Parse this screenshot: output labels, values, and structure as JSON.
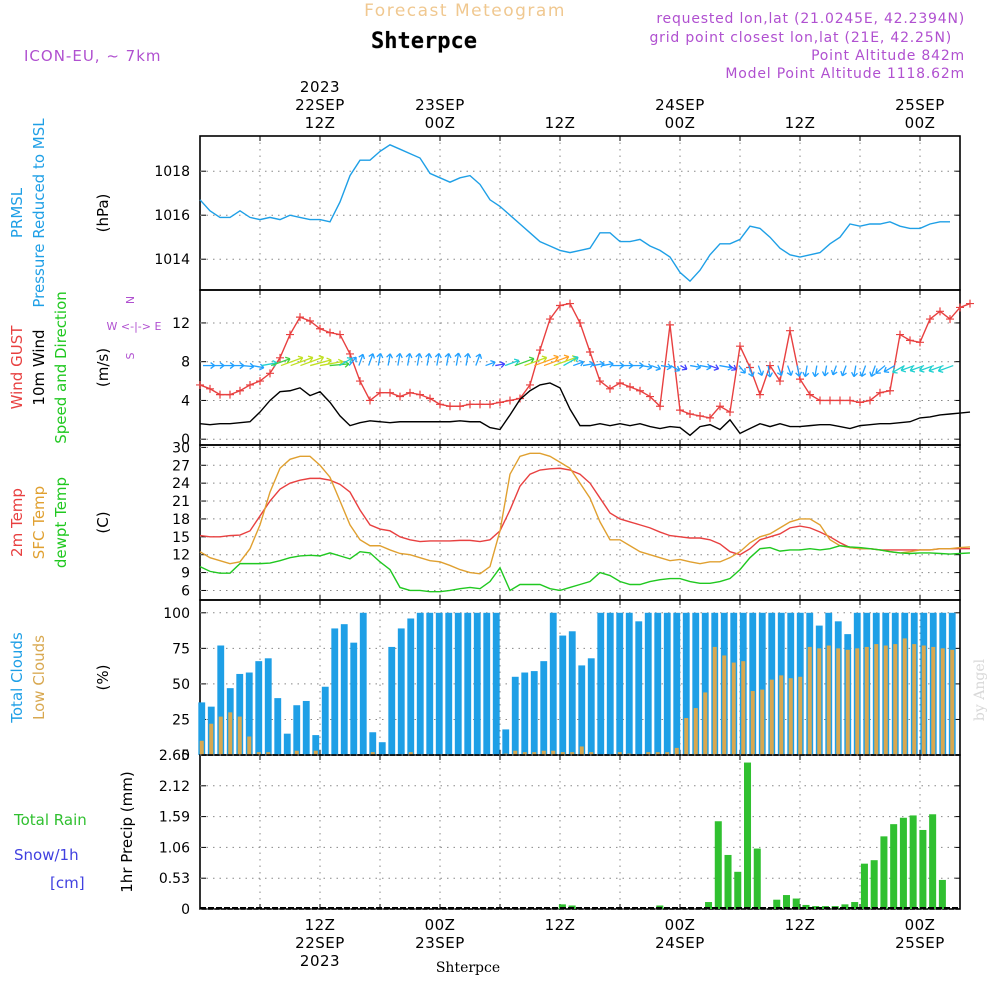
{
  "header": {
    "title_faded": "Forecast Meteogram",
    "location": "Shterpce",
    "model": "ICON-EU, ~ 7km",
    "requested": "requested lon,lat (21.0245E, 42.2394N)",
    "grid_point": "grid point closest lon,lat (21E, 42.25N)",
    "point_altitude": "Point Altitude 842m",
    "model_altitude": "Model Point Altitude 1118.62m",
    "watermark": "by Angel",
    "footer_location": "Shterpce"
  },
  "colors": {
    "pressure": "#1e9fe6",
    "gust": "#e84040",
    "wind": "#000000",
    "temp": "#e84040",
    "sfc": "#e0a030",
    "dewpt": "#20c820",
    "total_cloud": "#1e9fe6",
    "low_cloud": "#d8a850",
    "rain": "#30c030",
    "snow": "#4040e0",
    "purple": "#b050d0",
    "faded": "#f0c890",
    "grid": "#888888",
    "axis": "#000000"
  },
  "time_axis": {
    "top_labels": [
      {
        "t": 12,
        "lines": [
          "2023",
          "22SEP",
          "12Z"
        ]
      },
      {
        "t": 24,
        "lines": [
          "23SEP",
          "00Z"
        ]
      },
      {
        "t": 36,
        "lines": [
          "12Z"
        ]
      },
      {
        "t": 48,
        "lines": [
          "24SEP",
          "00Z"
        ]
      },
      {
        "t": 60,
        "lines": [
          "12Z"
        ]
      },
      {
        "t": 72,
        "lines": [
          "25SEP",
          "00Z"
        ]
      }
    ],
    "bottom_labels": [
      {
        "t": 12,
        "lines": [
          "12Z",
          "22SEP",
          "2023"
        ]
      },
      {
        "t": 24,
        "lines": [
          "00Z",
          "23SEP"
        ]
      },
      {
        "t": 36,
        "lines": [
          "12Z"
        ]
      },
      {
        "t": 48,
        "lines": [
          "00Z",
          "24SEP"
        ]
      },
      {
        "t": 60,
        "lines": [
          "12Z"
        ]
      },
      {
        "t": 72,
        "lines": [
          "00Z",
          "25SEP"
        ]
      }
    ],
    "t_start": 0,
    "t_end": 76
  },
  "chart_data": [
    {
      "type": "line",
      "title": "Pressure Reduced to MSL",
      "ylabel_lines": [
        "PRMSL",
        "Pressure Reduced to MSL"
      ],
      "unit": "(hPa)",
      "yticks": [
        1014,
        1016,
        1018
      ],
      "ylim": [
        1012.6,
        1019.6
      ],
      "series": [
        {
          "name": "PRMSL",
          "color": "#1e9fe6",
          "values": [
            1016.7,
            1016.2,
            1015.9,
            1015.9,
            1016.2,
            1015.9,
            1015.8,
            1015.9,
            1015.8,
            1016.0,
            1015.9,
            1015.8,
            1015.8,
            1015.7,
            1016.6,
            1017.8,
            1018.5,
            1018.5,
            1018.9,
            1019.2,
            1019.0,
            1018.8,
            1018.6,
            1017.9,
            1017.7,
            1017.5,
            1017.7,
            1017.8,
            1017.4,
            1016.7,
            1016.4,
            1016.0,
            1015.6,
            1015.2,
            1014.8,
            1014.6,
            1014.4,
            1014.3,
            1014.4,
            1014.5,
            1015.2,
            1015.2,
            1014.8,
            1014.8,
            1014.9,
            1014.6,
            1014.4,
            1014.1,
            1013.4,
            1013.0,
            1013.5,
            1014.2,
            1014.7,
            1014.7,
            1014.9,
            1015.5,
            1015.4,
            1015.0,
            1014.5,
            1014.2,
            1014.1,
            1014.2,
            1014.3,
            1014.7,
            1015.0,
            1015.6,
            1015.5,
            1015.6,
            1015.6,
            1015.7,
            1015.5,
            1015.4,
            1015.4,
            1015.6,
            1015.7,
            1015.7
          ]
        }
      ]
    },
    {
      "type": "line",
      "title": "Wind GUST / 10m Wind Speed and Direction",
      "ylabel_lines": [
        "Wind GUST",
        "10m Wind",
        "Speed and Direction"
      ],
      "unit": "(m/s)",
      "compass": "W <-|-> E",
      "compass_ns": [
        "N",
        "S"
      ],
      "yticks": [
        0,
        4,
        8,
        12
      ],
      "ylim": [
        -0.6,
        15.4
      ],
      "series": [
        {
          "name": "Wind GUST",
          "color": "#e84040",
          "marker": "+",
          "values": [
            5.6,
            5.2,
            4.6,
            4.6,
            5.0,
            5.6,
            6.0,
            6.8,
            8.4,
            10.8,
            12.6,
            12.2,
            11.4,
            11.0,
            10.8,
            8.8,
            6.0,
            4.0,
            4.8,
            4.8,
            4.4,
            4.8,
            4.6,
            4.2,
            3.6,
            3.4,
            3.4,
            3.6,
            3.6,
            3.6,
            3.8,
            4.0,
            4.2,
            5.6,
            9.2,
            12.4,
            13.8,
            14.0,
            12.0,
            9.0,
            6.0,
            5.2,
            5.8,
            5.4,
            5.0,
            4.4,
            3.4,
            11.8,
            3.0,
            2.6,
            2.4,
            2.2,
            3.4,
            2.8,
            9.6,
            7.4,
            4.6,
            7.6,
            6.0,
            11.2,
            6.2,
            4.6,
            4.0,
            4.0,
            4.0,
            4.0,
            3.8,
            4.0,
            4.8,
            5.0,
            10.8,
            10.2,
            10.0,
            12.4,
            13.2,
            12.4,
            13.6,
            14.0
          ]
        },
        {
          "name": "10m Wind",
          "color": "#000000",
          "values": [
            1.6,
            1.5,
            1.6,
            1.6,
            1.7,
            1.8,
            2.8,
            4.0,
            4.9,
            5.0,
            5.3,
            4.5,
            4.9,
            3.8,
            2.4,
            1.4,
            1.7,
            1.9,
            1.8,
            1.7,
            1.8,
            1.8,
            1.8,
            1.8,
            1.8,
            1.8,
            1.9,
            1.8,
            1.8,
            1.2,
            1.0,
            2.5,
            4.1,
            5.0,
            5.6,
            5.8,
            5.3,
            3.1,
            1.4,
            1.4,
            1.6,
            1.4,
            1.6,
            1.4,
            1.6,
            1.3,
            1.1,
            1.3,
            1.2,
            0.4,
            1.3,
            1.5,
            1.0,
            2.0,
            0.6,
            1.1,
            1.6,
            1.3,
            1.6,
            1.3,
            1.3,
            1.4,
            1.5,
            1.5,
            1.3,
            1.1,
            1.4,
            1.5,
            1.6,
            1.6,
            1.7,
            1.8,
            2.2,
            2.3,
            2.5,
            2.6,
            2.7,
            2.8
          ]
        }
      ],
      "arrows_y_level": 7.6,
      "arrows": {
        "start_t": 0.3,
        "step": 0.5,
        "speeds": [
          1.6,
          1.5,
          1.6,
          1.6,
          1.7,
          1.8,
          2.8,
          4.0,
          4.9,
          5.0,
          5.3,
          4.5,
          4.9,
          3.8,
          2.4,
          1.4,
          1.7,
          1.9,
          1.8,
          1.7,
          1.8,
          1.8,
          1.8,
          1.8,
          1.8,
          1.8,
          1.9,
          1.8,
          1.8,
          1.2,
          1.0,
          2.5,
          4.1,
          5.0,
          5.6,
          5.8,
          5.3,
          3.1,
          1.4,
          1.4,
          1.6,
          1.4,
          1.6,
          1.4,
          1.6,
          1.3,
          1.1,
          1.3,
          1.2,
          0.4,
          1.3,
          1.5,
          1.0,
          2.0,
          0.6,
          1.1,
          1.6,
          1.3,
          1.6,
          1.3,
          1.3,
          1.4,
          1.5,
          1.5,
          1.3,
          1.1,
          1.4,
          1.5,
          1.6,
          1.6,
          1.7,
          1.8,
          2.2,
          2.3,
          2.5,
          2.6,
          2.7,
          2.8
        ],
        "dirs": [
          90,
          90,
          90,
          90,
          95,
          100,
          80,
          70,
          70,
          70,
          70,
          75,
          80,
          85,
          60,
          40,
          20,
          20,
          10,
          10,
          10,
          10,
          10,
          10,
          10,
          10,
          10,
          10,
          20,
          70,
          80,
          70,
          70,
          70,
          70,
          70,
          70,
          60,
          70,
          80,
          80,
          80,
          90,
          90,
          90,
          100,
          110,
          100,
          120,
          120,
          100,
          100,
          110,
          100,
          120,
          140,
          160,
          160,
          170,
          160,
          160,
          170,
          190,
          190,
          190,
          200,
          200,
          190,
          200,
          200,
          230,
          240,
          240,
          250,
          250,
          250,
          250,
          250
        ]
      }
    },
    {
      "type": "line",
      "title": "2m Temp / SFC Temp / dewpt Temp",
      "ylabel_lines": [
        "2m Temp",
        "SFC Temp",
        "dewpt Temp"
      ],
      "unit": "(C)",
      "yticks": [
        6,
        9,
        12,
        15,
        18,
        21,
        24,
        27,
        30
      ],
      "ylim": [
        4.4,
        30.4
      ],
      "series": [
        {
          "name": "2m Temp",
          "color": "#e84040",
          "values": [
            15.2,
            15.0,
            15.0,
            15.2,
            15.3,
            16.0,
            18.5,
            21.0,
            23.0,
            24.0,
            24.5,
            24.8,
            24.8,
            24.5,
            23.8,
            22.5,
            19.5,
            17.0,
            16.3,
            16.0,
            15.0,
            14.5,
            14.2,
            14.3,
            14.3,
            14.3,
            14.4,
            14.4,
            14.2,
            14.5,
            16.0,
            19.5,
            23.5,
            25.5,
            26.2,
            26.4,
            26.5,
            26.2,
            25.5,
            24.0,
            21.5,
            19.0,
            18.0,
            17.5,
            17.0,
            16.5,
            15.8,
            15.2,
            15.0,
            14.8,
            14.8,
            14.5,
            13.8,
            12.5,
            12.0,
            13.0,
            14.5,
            15.0,
            15.5,
            16.5,
            16.8,
            16.5,
            15.8,
            15.0,
            14.0,
            13.2,
            13.0,
            13.0,
            12.8,
            12.8,
            12.8,
            12.8,
            12.8,
            12.8,
            13.0,
            13.0,
            13.0,
            13.0
          ]
        },
        {
          "name": "SFC Temp",
          "color": "#e0a030",
          "values": [
            12.5,
            11.5,
            11.0,
            10.5,
            10.8,
            13.0,
            17.0,
            22.5,
            26.5,
            28.0,
            28.5,
            28.5,
            27.0,
            25.0,
            21.0,
            17.0,
            14.5,
            13.5,
            13.5,
            12.8,
            12.2,
            12.0,
            11.5,
            11.0,
            10.8,
            10.2,
            9.5,
            9.0,
            8.8,
            10.0,
            16.0,
            25.5,
            28.5,
            29.0,
            29.0,
            28.5,
            27.5,
            26.5,
            24.0,
            21.5,
            17.5,
            14.5,
            14.5,
            13.5,
            12.5,
            12.0,
            11.5,
            11.0,
            11.2,
            10.8,
            10.5,
            10.8,
            10.8,
            11.5,
            12.5,
            14.0,
            15.0,
            15.5,
            16.5,
            17.5,
            18.0,
            18.0,
            17.0,
            14.5,
            13.5,
            13.2,
            13.0,
            13.0,
            12.8,
            12.5,
            12.3,
            12.5,
            12.8,
            12.8,
            13.0,
            13.0,
            13.2,
            13.3
          ]
        },
        {
          "name": "dewpt Temp",
          "color": "#20c820",
          "values": [
            10.0,
            9.2,
            8.9,
            8.9,
            10.5,
            10.5,
            10.5,
            10.6,
            11.0,
            11.5,
            11.8,
            11.9,
            11.8,
            12.3,
            11.8,
            11.3,
            12.5,
            12.3,
            10.8,
            9.5,
            6.5,
            6.0,
            6.0,
            5.8,
            5.8,
            6.0,
            6.3,
            6.5,
            6.3,
            7.5,
            9.8,
            6.0,
            7.0,
            7.0,
            7.0,
            6.3,
            6.0,
            6.5,
            7.0,
            7.5,
            9.0,
            8.5,
            7.5,
            7.0,
            7.0,
            7.5,
            7.8,
            8.0,
            8.0,
            7.5,
            7.2,
            7.2,
            7.5,
            8.0,
            9.5,
            11.5,
            13.0,
            13.2,
            12.6,
            12.8,
            12.8,
            13.0,
            12.8,
            13.0,
            13.5,
            13.3,
            13.2,
            13.0,
            12.8,
            12.5,
            12.3,
            12.2,
            12.3,
            12.3,
            12.2,
            12.1,
            12.2,
            12.3
          ]
        }
      ]
    },
    {
      "type": "bar",
      "title": "Total Clouds / Low Clouds",
      "ylabel_lines": [
        "Total Clouds",
        "Low Clouds"
      ],
      "unit": "(%)",
      "yticks": [
        0,
        25,
        50,
        75,
        100
      ],
      "ylim": [
        0,
        109
      ],
      "series": [
        {
          "name": "Total Clouds",
          "color": "#1e9fe6",
          "values": [
            37,
            34,
            77,
            47,
            57,
            58,
            66,
            68,
            40,
            15,
            35,
            38,
            14,
            48,
            89,
            92,
            79,
            100,
            16,
            9,
            76,
            89,
            96,
            100,
            100,
            100,
            100,
            100,
            100,
            100,
            100,
            100,
            18,
            55,
            58,
            59,
            66,
            100,
            84,
            87,
            63,
            68,
            100,
            100,
            100,
            100,
            94,
            100,
            100,
            100,
            100,
            100,
            100,
            100,
            100,
            100,
            100,
            100,
            100,
            100,
            100,
            100,
            100,
            100,
            100,
            91,
            100,
            94,
            85,
            100,
            100,
            100,
            100,
            100,
            100,
            100,
            100,
            100,
            100,
            100
          ]
        },
        {
          "name": "Low Clouds",
          "color": "#d8a850",
          "values": [
            10,
            22,
            27,
            30,
            27,
            13,
            2,
            2,
            0,
            0,
            3,
            0,
            3,
            0,
            0,
            0,
            0,
            0,
            2,
            0,
            0,
            0,
            2,
            0,
            0,
            0,
            0,
            0,
            0,
            0,
            0,
            0,
            1,
            3,
            2,
            2,
            3,
            3,
            2,
            2,
            6,
            2,
            0,
            0,
            2,
            1,
            0,
            2,
            2,
            2,
            5,
            26,
            33,
            44,
            76,
            70,
            65,
            66,
            45,
            46,
            53,
            56,
            54,
            55,
            76,
            75,
            77,
            75,
            74,
            75,
            76,
            78,
            77,
            78,
            82,
            78,
            77,
            76,
            75,
            74
          ]
        }
      ]
    },
    {
      "type": "bar",
      "title": "1hr Precip",
      "ylabel_lines": [
        "1hr Precip (mm)"
      ],
      "side_labels": [
        "Total  Rain",
        "Snow/1h",
        "[cm]"
      ],
      "unit": "(mm)",
      "yticks": [
        0,
        0.53,
        1.06,
        1.59,
        2.12,
        2.65
      ],
      "ytick_labels": [
        "0",
        "0.53",
        "1.06",
        "1.59",
        "2.12",
        "2.65"
      ],
      "ylim": [
        0,
        2.65
      ],
      "series": [
        {
          "name": "Total Rain",
          "color": "#30c030",
          "values": [
            0,
            0,
            0,
            0,
            0,
            0,
            0,
            0,
            0,
            0,
            0,
            0,
            0,
            0,
            0,
            0,
            0,
            0,
            0,
            0,
            0,
            0,
            0,
            0,
            0,
            0,
            0,
            0,
            0,
            0,
            0,
            0,
            0,
            0,
            0,
            0,
            0,
            0.08,
            0.06,
            0,
            0,
            0,
            0,
            0,
            0,
            0,
            0,
            0.06,
            0,
            0,
            0,
            0,
            0.12,
            1.51,
            0.93,
            0.64,
            2.52,
            1.04,
            0,
            0.16,
            0.24,
            0.18,
            0.07,
            0.05,
            0.05,
            0.05,
            0.08,
            0.12,
            0.78,
            0.84,
            1.25,
            1.46,
            1.57,
            1.61,
            1.36,
            1.63,
            0.5,
            0
          ]
        }
      ]
    }
  ]
}
